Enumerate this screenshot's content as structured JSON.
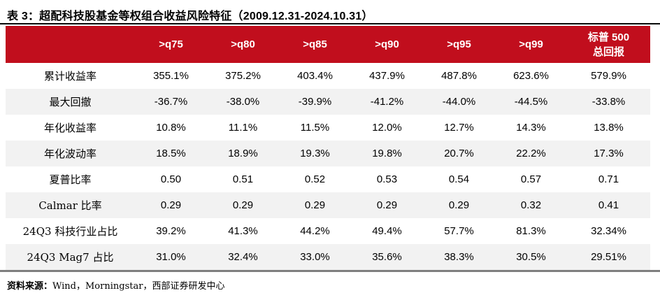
{
  "title": "表 3：超配科技股基金等权组合收益风险特征（2009.12.31-2024.10.31）",
  "table": {
    "columns": [
      ">q75",
      ">q80",
      ">q85",
      ">q90",
      ">q95",
      ">q99"
    ],
    "last_column_line1": "标普 500",
    "last_column_line2": "总回报",
    "rows": [
      {
        "label": "累计收益率",
        "values": [
          "355.1%",
          "375.2%",
          "403.4%",
          "437.9%",
          "487.8%",
          "623.6%",
          "579.9%"
        ]
      },
      {
        "label": "最大回撤",
        "values": [
          "-36.7%",
          "-38.0%",
          "-39.9%",
          "-41.2%",
          "-44.0%",
          "-44.5%",
          "-33.8%"
        ]
      },
      {
        "label": "年化收益率",
        "values": [
          "10.8%",
          "11.1%",
          "11.5%",
          "12.0%",
          "12.7%",
          "14.3%",
          "13.8%"
        ]
      },
      {
        "label": "年化波动率",
        "values": [
          "18.5%",
          "18.9%",
          "19.3%",
          "19.8%",
          "20.7%",
          "22.2%",
          "17.3%"
        ]
      },
      {
        "label": "夏普比率",
        "values": [
          "0.50",
          "0.51",
          "0.52",
          "0.53",
          "0.54",
          "0.57",
          "0.71"
        ]
      },
      {
        "label": "Calmar 比率",
        "values": [
          "0.29",
          "0.29",
          "0.29",
          "0.29",
          "0.29",
          "0.32",
          "0.41"
        ]
      },
      {
        "label": "24Q3 科技行业占比",
        "values": [
          "39.2%",
          "41.3%",
          "44.2%",
          "49.4%",
          "57.7%",
          "81.3%",
          "32.34%"
        ]
      },
      {
        "label": "24Q3 Mag7 占比",
        "values": [
          "31.0%",
          "32.4%",
          "33.0%",
          "35.6%",
          "38.3%",
          "30.5%",
          "29.51%"
        ]
      }
    ]
  },
  "footer": {
    "source_label": "资料来源：",
    "source_text": "Wind，Morningstar，西部证券研发中心"
  },
  "colors": {
    "header_red": "#C10E1D",
    "row_alt_bg": "#F2F2F2",
    "top_line": "#0A0A0A",
    "bottom_line": "#7F7F7F"
  }
}
